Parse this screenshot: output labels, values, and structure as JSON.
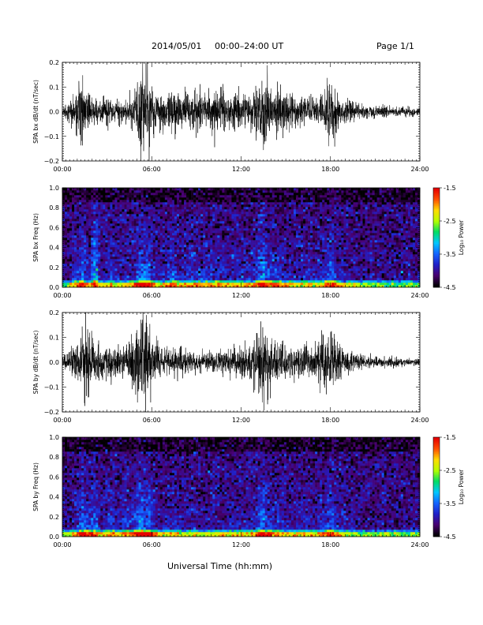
{
  "header": {
    "date": "2014/05/01",
    "time_range": "00:00–24:00 UT",
    "page": "Page 1/1"
  },
  "x_axis_title": "Universal Time (hh:mm)",
  "colorbar": {
    "label": "Log₁₀ Power",
    "ticks": [
      "-1.5",
      "-2.5",
      "-3.5",
      "-4.5"
    ],
    "range": [
      -4.5,
      -1.5
    ],
    "colormap": [
      "#000000",
      "#4a0070",
      "#2020c8",
      "#1464ff",
      "#00c8ff",
      "#00dc64",
      "#b4ff00",
      "#ffdc00",
      "#ff5000",
      "#e60000"
    ]
  },
  "colors": {
    "trace": "#000000",
    "axes": "#000000",
    "background": "#ffffff"
  },
  "chart_data": [
    {
      "type": "line",
      "name": "panel-bx-waveform",
      "ylabel": "SPA bx dB/dt (nT/sec)",
      "xticks": [
        "00:00",
        "06:00",
        "12:00",
        "18:00",
        "24:00"
      ],
      "yticks": [
        "0.2",
        "0.1",
        "0.0",
        "−0.1",
        "−0.2"
      ],
      "xlim": [
        0,
        24
      ],
      "ylim": [
        -0.2,
        0.2
      ],
      "envelope": [
        [
          0.0,
          0.02
        ],
        [
          0.5,
          0.04
        ],
        [
          1.0,
          0.1
        ],
        [
          1.3,
          0.17
        ],
        [
          1.6,
          0.08
        ],
        [
          2.0,
          0.06
        ],
        [
          2.5,
          0.05
        ],
        [
          3.0,
          0.06
        ],
        [
          3.5,
          0.05
        ],
        [
          4.0,
          0.04
        ],
        [
          4.5,
          0.06
        ],
        [
          5.0,
          0.12
        ],
        [
          5.3,
          0.2
        ],
        [
          5.6,
          0.22
        ],
        [
          5.9,
          0.12
        ],
        [
          6.3,
          0.06
        ],
        [
          7.0,
          0.07
        ],
        [
          7.5,
          0.09
        ],
        [
          8.0,
          0.07
        ],
        [
          9.0,
          0.08
        ],
        [
          10.0,
          0.08
        ],
        [
          10.5,
          0.09
        ],
        [
          11.0,
          0.07
        ],
        [
          12.0,
          0.08
        ],
        [
          12.5,
          0.07
        ],
        [
          13.0,
          0.09
        ],
        [
          13.5,
          0.15
        ],
        [
          14.0,
          0.11
        ],
        [
          14.5,
          0.09
        ],
        [
          15.0,
          0.08
        ],
        [
          16.0,
          0.06
        ],
        [
          17.0,
          0.05
        ],
        [
          17.5,
          0.08
        ],
        [
          18.0,
          0.13
        ],
        [
          18.3,
          0.1
        ],
        [
          18.6,
          0.07
        ],
        [
          19.0,
          0.05
        ],
        [
          20.0,
          0.03
        ],
        [
          21.0,
          0.025
        ],
        [
          22.0,
          0.02
        ],
        [
          23.0,
          0.02
        ],
        [
          24.0,
          0.015
        ]
      ]
    },
    {
      "type": "heatmap",
      "name": "panel-bx-spectrogram",
      "ylabel": "SPA bx Freq (Hz)",
      "xticks": [
        "00:00",
        "06:00",
        "12:00",
        "18:00",
        "24:00"
      ],
      "yticks": [
        "1.0",
        "0.8",
        "0.6",
        "0.4",
        "0.2",
        "0.0"
      ],
      "xlim": [
        0,
        24
      ],
      "ylim": [
        0,
        1
      ],
      "zlim": [
        -4.5,
        -1.5
      ],
      "bursts": [
        [
          1.3,
          0.25
        ],
        [
          2.2,
          0.9
        ],
        [
          3.3,
          0.2
        ],
        [
          4.3,
          0.15
        ],
        [
          5.3,
          0.35
        ],
        [
          5.7,
          0.3
        ],
        [
          7.4,
          0.25
        ],
        [
          8.7,
          0.1
        ],
        [
          13.4,
          0.5
        ],
        [
          14.4,
          0.15
        ],
        [
          16.6,
          0.15
        ],
        [
          18.1,
          0.2
        ]
      ]
    },
    {
      "type": "line",
      "name": "panel-by-waveform",
      "ylabel": "SPA by dB/dt (nT/sec)",
      "xticks": [
        "00:00",
        "06:00",
        "12:00",
        "18:00",
        "24:00"
      ],
      "yticks": [
        "0.2",
        "0.1",
        "0.0",
        "−0.1",
        "−0.2"
      ],
      "xlim": [
        0,
        24
      ],
      "ylim": [
        -0.2,
        0.2
      ],
      "envelope": [
        [
          0.0,
          0.02
        ],
        [
          0.5,
          0.04
        ],
        [
          1.0,
          0.08
        ],
        [
          1.3,
          0.11
        ],
        [
          1.6,
          0.18
        ],
        [
          2.0,
          0.09
        ],
        [
          2.5,
          0.06
        ],
        [
          3.0,
          0.06
        ],
        [
          3.5,
          0.07
        ],
        [
          4.0,
          0.06
        ],
        [
          4.5,
          0.08
        ],
        [
          5.0,
          0.14
        ],
        [
          5.3,
          0.2
        ],
        [
          5.6,
          0.2
        ],
        [
          6.0,
          0.1
        ],
        [
          6.5,
          0.06
        ],
        [
          7.0,
          0.05
        ],
        [
          7.5,
          0.06
        ],
        [
          8.0,
          0.05
        ],
        [
          9.0,
          0.04
        ],
        [
          10.0,
          0.04
        ],
        [
          11.0,
          0.05
        ],
        [
          12.0,
          0.06
        ],
        [
          12.5,
          0.07
        ],
        [
          13.0,
          0.1
        ],
        [
          13.5,
          0.17
        ],
        [
          14.0,
          0.11
        ],
        [
          14.5,
          0.08
        ],
        [
          15.0,
          0.06
        ],
        [
          16.0,
          0.06
        ],
        [
          17.0,
          0.07
        ],
        [
          17.5,
          0.1
        ],
        [
          18.0,
          0.12
        ],
        [
          18.5,
          0.09
        ],
        [
          19.0,
          0.05
        ],
        [
          20.0,
          0.03
        ],
        [
          21.0,
          0.02
        ],
        [
          22.0,
          0.02
        ],
        [
          23.0,
          0.015
        ],
        [
          24.0,
          0.015
        ]
      ]
    },
    {
      "type": "heatmap",
      "name": "panel-by-spectrogram",
      "ylabel": "SPA by Freq (Hz)",
      "xticks": [
        "00:00",
        "06:00",
        "12:00",
        "18:00",
        "24:00"
      ],
      "yticks": [
        "1.0",
        "0.8",
        "0.6",
        "0.4",
        "0.2",
        "0.0"
      ],
      "xlim": [
        0,
        24
      ],
      "ylim": [
        0,
        1
      ],
      "zlim": [
        -4.5,
        -1.5
      ],
      "bursts": [
        [
          1.3,
          0.3
        ],
        [
          2.2,
          0.5
        ],
        [
          3.3,
          0.25
        ],
        [
          4.2,
          0.2
        ],
        [
          5.3,
          0.4
        ],
        [
          5.8,
          0.35
        ],
        [
          7.5,
          0.2
        ],
        [
          13.4,
          0.45
        ],
        [
          16.2,
          0.1
        ],
        [
          18.0,
          0.25
        ]
      ]
    }
  ]
}
